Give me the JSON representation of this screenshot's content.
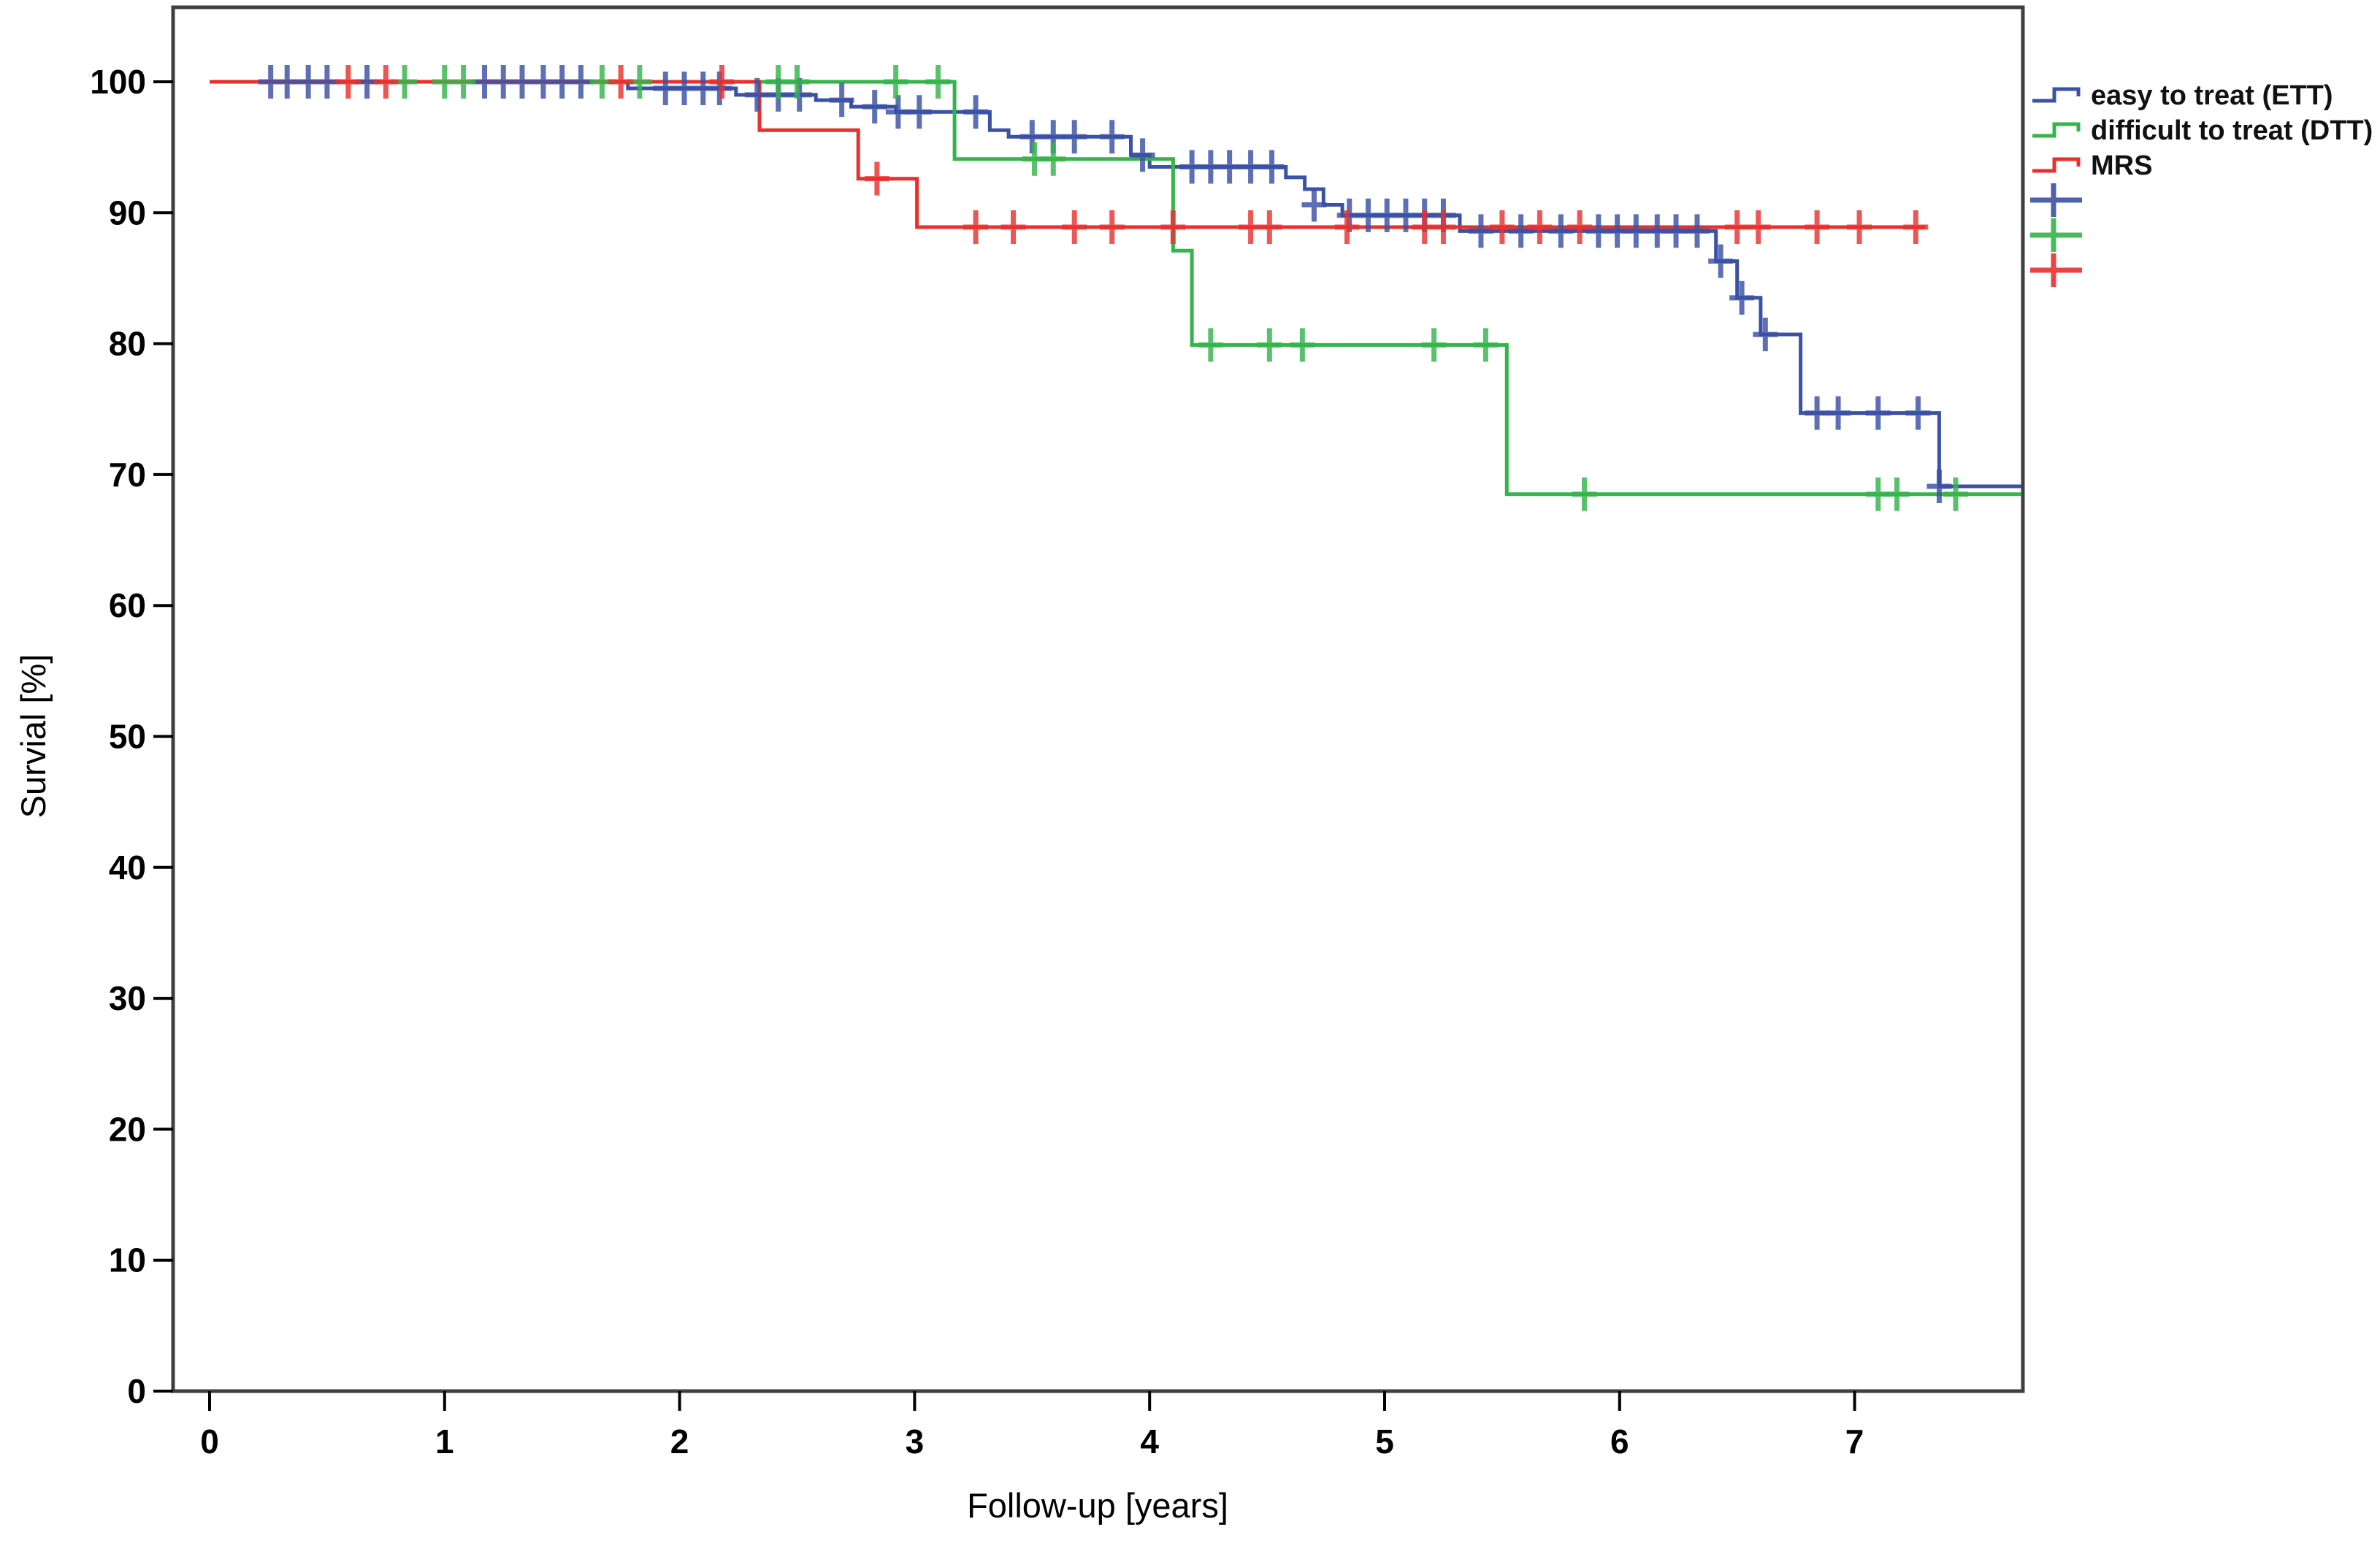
{
  "chart_data": {
    "type": "line",
    "subtype": "kaplan-meier-step-survival",
    "title": "",
    "xlabel": "Follow-up [years]",
    "ylabel": "Survial [%]",
    "xlim": [
      0,
      7.71
    ],
    "ylim": [
      0,
      100
    ],
    "x_ticks": [
      0,
      1,
      2,
      3,
      4,
      5,
      6,
      7
    ],
    "y_ticks": [
      0,
      10,
      20,
      30,
      40,
      50,
      60,
      70,
      80,
      90,
      100
    ],
    "grid": false,
    "axis_color": "#3f3f3f",
    "series": [
      {
        "id": "ett",
        "name": "easy to treat (ETT)",
        "color": "#3B51A5",
        "points": [
          [
            0,
            100
          ],
          [
            1.78,
            100
          ],
          [
            1.78,
            99.5
          ],
          [
            2.24,
            99.5
          ],
          [
            2.24,
            99.0
          ],
          [
            2.58,
            99.0
          ],
          [
            2.58,
            98.6
          ],
          [
            2.73,
            98.6
          ],
          [
            2.73,
            98.1
          ],
          [
            2.92,
            98.1
          ],
          [
            2.92,
            97.7
          ],
          [
            3.32,
            97.7
          ],
          [
            3.32,
            96.3
          ],
          [
            3.4,
            96.3
          ],
          [
            3.4,
            95.8
          ],
          [
            3.92,
            95.8
          ],
          [
            3.92,
            94.4
          ],
          [
            4.0,
            94.4
          ],
          [
            4.0,
            93.5
          ],
          [
            4.58,
            93.5
          ],
          [
            4.58,
            92.7
          ],
          [
            4.66,
            92.7
          ],
          [
            4.66,
            91.8
          ],
          [
            4.74,
            91.8
          ],
          [
            4.74,
            90.6
          ],
          [
            4.82,
            90.6
          ],
          [
            4.82,
            89.8
          ],
          [
            5.32,
            89.8
          ],
          [
            5.32,
            88.6
          ],
          [
            6.41,
            88.6
          ],
          [
            6.41,
            86.3
          ],
          [
            6.5,
            86.3
          ],
          [
            6.5,
            83.5
          ],
          [
            6.6,
            83.5
          ],
          [
            6.6,
            80.7
          ],
          [
            6.77,
            80.7
          ],
          [
            6.77,
            74.7
          ],
          [
            7.36,
            74.7
          ],
          [
            7.36,
            69.1
          ],
          [
            7.71,
            69.1
          ]
        ],
        "censors": [
          [
            0.26,
            100
          ],
          [
            0.33,
            100
          ],
          [
            0.42,
            100
          ],
          [
            0.5,
            100
          ],
          [
            0.67,
            100
          ],
          [
            1.17,
            100
          ],
          [
            1.25,
            100
          ],
          [
            1.33,
            100
          ],
          [
            1.42,
            100
          ],
          [
            1.5,
            100
          ],
          [
            1.58,
            100
          ],
          [
            1.94,
            99.5
          ],
          [
            2.02,
            99.5
          ],
          [
            2.1,
            99.5
          ],
          [
            2.17,
            99.5
          ],
          [
            2.33,
            99.0
          ],
          [
            2.42,
            99.0
          ],
          [
            2.51,
            99.0
          ],
          [
            2.69,
            98.6
          ],
          [
            2.83,
            98.1
          ],
          [
            2.93,
            97.7
          ],
          [
            3.02,
            97.7
          ],
          [
            3.26,
            97.7
          ],
          [
            3.5,
            95.8
          ],
          [
            3.59,
            95.8
          ],
          [
            3.68,
            95.8
          ],
          [
            3.84,
            95.8
          ],
          [
            3.97,
            94.4
          ],
          [
            4.18,
            93.5
          ],
          [
            4.26,
            93.5
          ],
          [
            4.34,
            93.5
          ],
          [
            4.43,
            93.5
          ],
          [
            4.52,
            93.5
          ],
          [
            4.7,
            90.6
          ],
          [
            4.85,
            89.8
          ],
          [
            4.93,
            89.8
          ],
          [
            5.01,
            89.8
          ],
          [
            5.09,
            89.8
          ],
          [
            5.17,
            89.8
          ],
          [
            5.25,
            89.8
          ],
          [
            5.41,
            88.6
          ],
          [
            5.58,
            88.6
          ],
          [
            5.75,
            88.6
          ],
          [
            5.91,
            88.6
          ],
          [
            5.99,
            88.6
          ],
          [
            6.07,
            88.6
          ],
          [
            6.16,
            88.6
          ],
          [
            6.24,
            88.6
          ],
          [
            6.33,
            88.6
          ],
          [
            6.43,
            86.3
          ],
          [
            6.52,
            83.5
          ],
          [
            6.62,
            80.7
          ],
          [
            6.84,
            74.7
          ],
          [
            6.93,
            74.7
          ],
          [
            7.1,
            74.7
          ],
          [
            7.27,
            74.7
          ],
          [
            7.36,
            69.1
          ]
        ]
      },
      {
        "id": "dtt",
        "name": "difficult to treat (DTT)",
        "color": "#35B44B",
        "points": [
          [
            0,
            100
          ],
          [
            3.17,
            100
          ],
          [
            3.17,
            94.1
          ],
          [
            4.1,
            94.1
          ],
          [
            4.1,
            87.1
          ],
          [
            4.18,
            87.1
          ],
          [
            4.18,
            79.9
          ],
          [
            5.52,
            79.9
          ],
          [
            5.52,
            68.5
          ],
          [
            7.71,
            68.5
          ]
        ],
        "censors": [
          [
            0.83,
            100
          ],
          [
            1.0,
            100
          ],
          [
            1.08,
            100
          ],
          [
            1.67,
            100
          ],
          [
            1.83,
            100
          ],
          [
            2.42,
            100
          ],
          [
            2.5,
            100
          ],
          [
            2.92,
            100
          ],
          [
            3.1,
            100
          ],
          [
            3.51,
            94.1
          ],
          [
            3.59,
            94.1
          ],
          [
            4.26,
            79.9
          ],
          [
            4.51,
            79.9
          ],
          [
            4.65,
            79.9
          ],
          [
            5.21,
            79.9
          ],
          [
            5.43,
            79.9
          ],
          [
            5.85,
            68.5
          ],
          [
            7.1,
            68.5
          ],
          [
            7.18,
            68.5
          ],
          [
            7.43,
            68.5
          ]
        ]
      },
      {
        "id": "mrs",
        "name": "MRS",
        "color": "#E8312F",
        "points": [
          [
            0,
            100
          ],
          [
            2.34,
            100
          ],
          [
            2.34,
            96.3
          ],
          [
            2.76,
            96.3
          ],
          [
            2.76,
            92.6
          ],
          [
            3.01,
            92.6
          ],
          [
            3.01,
            88.9
          ],
          [
            7.3,
            88.9
          ]
        ],
        "censors": [
          [
            0.59,
            100
          ],
          [
            0.75,
            100
          ],
          [
            1.75,
            100
          ],
          [
            2.18,
            100
          ],
          [
            2.84,
            92.6
          ],
          [
            3.26,
            88.9
          ],
          [
            3.42,
            88.9
          ],
          [
            3.68,
            88.9
          ],
          [
            3.84,
            88.9
          ],
          [
            4.1,
            88.9
          ],
          [
            4.43,
            88.9
          ],
          [
            4.51,
            88.9
          ],
          [
            4.84,
            88.9
          ],
          [
            5.17,
            88.9
          ],
          [
            5.25,
            88.9
          ],
          [
            5.5,
            88.9
          ],
          [
            5.66,
            88.9
          ],
          [
            5.83,
            88.9
          ],
          [
            6.5,
            88.9
          ],
          [
            6.59,
            88.9
          ],
          [
            6.84,
            88.9
          ],
          [
            7.02,
            88.9
          ],
          [
            7.26,
            88.9
          ]
        ]
      }
    ],
    "legend": {
      "position": "outside-top-right",
      "entries": [
        {
          "label": "easy to treat (ETT)",
          "color": "#3B51A5",
          "marker": "step-line"
        },
        {
          "label": "difficult to treat (DTT)",
          "color": "#35B44B",
          "marker": "step-line"
        },
        {
          "label": "MRS",
          "color": "#E8312F",
          "marker": "step-line"
        },
        {
          "label": "",
          "color": "#3B51A5",
          "marker": "censor-plus"
        },
        {
          "label": "",
          "color": "#35B44B",
          "marker": "censor-plus"
        },
        {
          "label": "",
          "color": "#E8312F",
          "marker": "censor-plus"
        }
      ]
    }
  }
}
